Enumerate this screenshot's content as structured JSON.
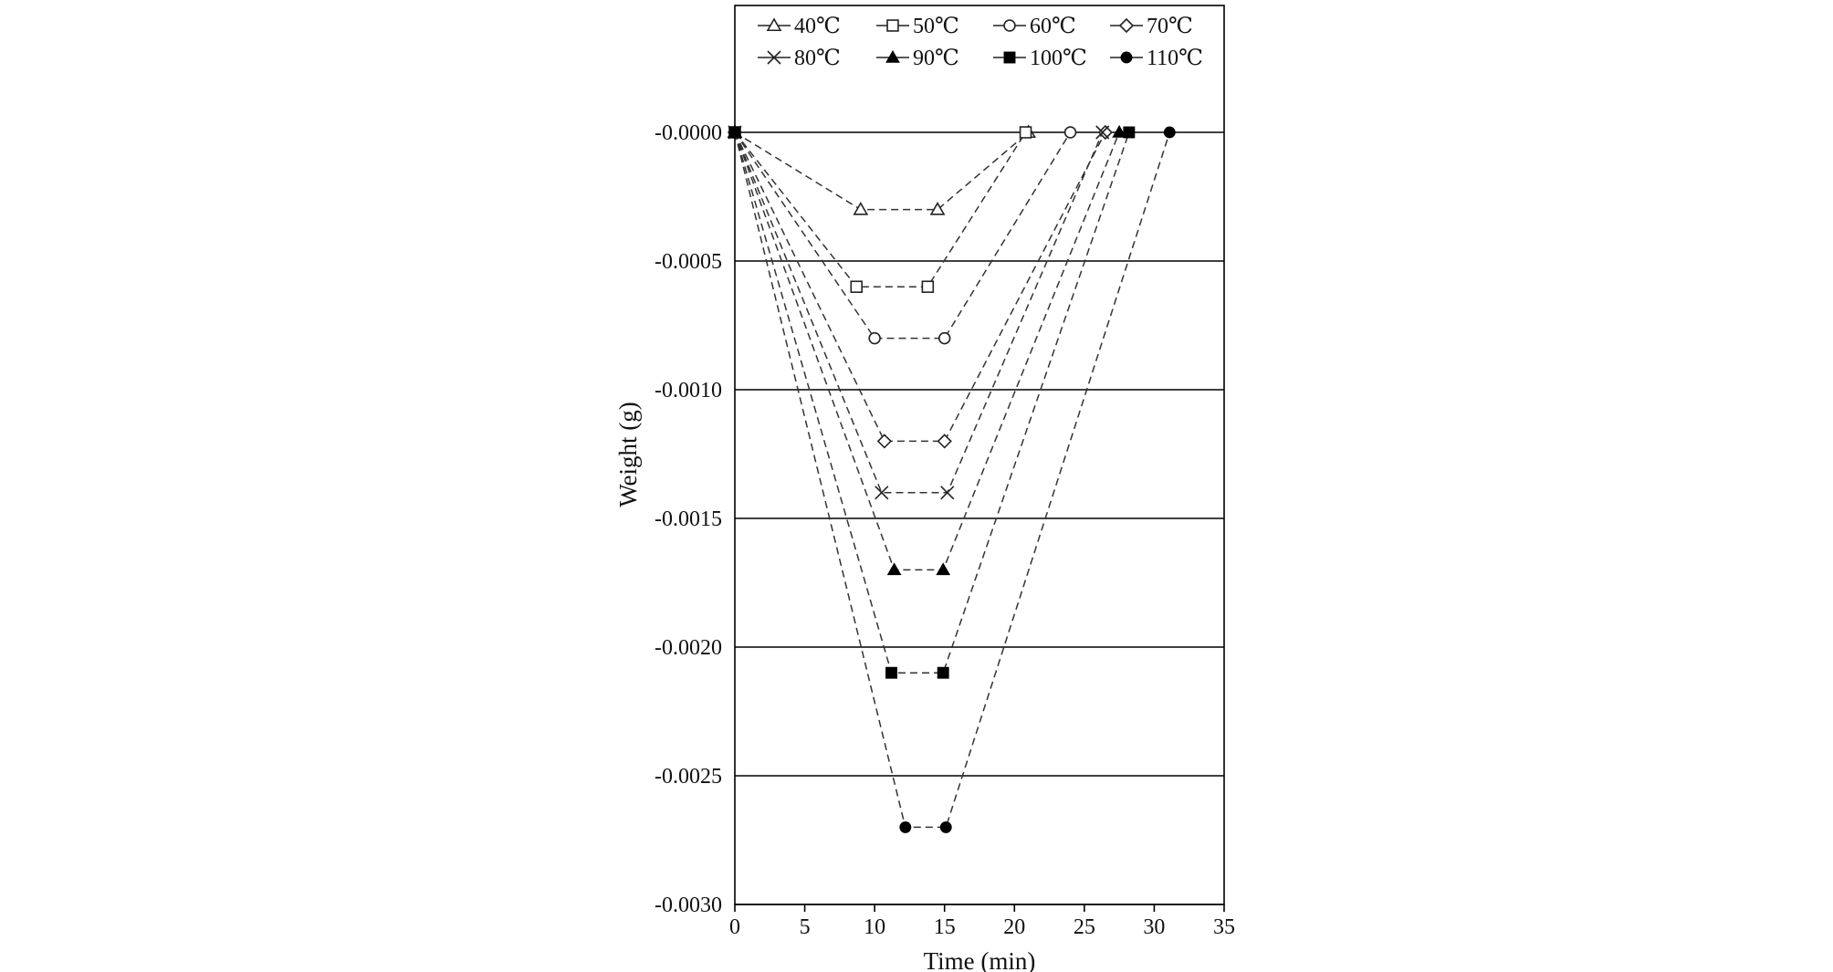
{
  "chart_data": {
    "type": "line",
    "xlabel": "Time (min)",
    "ylabel": "Weight (g)",
    "xlim": [
      0,
      35
    ],
    "ylim": [
      -0.003,
      0
    ],
    "x_ticks": [
      "0",
      "5",
      "10",
      "15",
      "20",
      "25",
      "30",
      "35"
    ],
    "y_ticks": [
      "-0.0000",
      "-0.0005",
      "-0.0010",
      "-0.0015",
      "-0.0020",
      "-0.0025",
      "-0.0030"
    ],
    "grid": "horizontal",
    "legend_position": "top",
    "series": [
      {
        "name": "40℃",
        "marker": "triangle-open",
        "points": [
          [
            0,
            0
          ],
          [
            9,
            -0.0003
          ],
          [
            14.5,
            -0.0003
          ],
          [
            21,
            0
          ]
        ]
      },
      {
        "name": "50℃",
        "marker": "square-open",
        "points": [
          [
            0,
            0
          ],
          [
            8.7,
            -0.0006
          ],
          [
            13.8,
            -0.0006
          ],
          [
            20.8,
            0
          ]
        ]
      },
      {
        "name": "60℃",
        "marker": "circle-open",
        "points": [
          [
            0,
            0
          ],
          [
            10,
            -0.0008
          ],
          [
            15,
            -0.0008
          ],
          [
            24,
            0
          ]
        ]
      },
      {
        "name": "70℃",
        "marker": "diamond-open",
        "points": [
          [
            0,
            0
          ],
          [
            10.7,
            -0.0012
          ],
          [
            15,
            -0.0012
          ],
          [
            26.5,
            0
          ]
        ]
      },
      {
        "name": "80℃",
        "marker": "x",
        "points": [
          [
            0,
            0
          ],
          [
            10.5,
            -0.0014
          ],
          [
            15.2,
            -0.0014
          ],
          [
            26.3,
            0
          ]
        ]
      },
      {
        "name": "90℃",
        "marker": "triangle-filled",
        "points": [
          [
            0,
            0
          ],
          [
            11.4,
            -0.0017
          ],
          [
            14.9,
            -0.0017
          ],
          [
            27.5,
            0
          ]
        ]
      },
      {
        "name": "100℃",
        "marker": "square-filled",
        "points": [
          [
            0,
            0
          ],
          [
            11.2,
            -0.0021
          ],
          [
            14.9,
            -0.0021
          ],
          [
            28.2,
            0
          ]
        ]
      },
      {
        "name": "110℃",
        "marker": "circle-filled",
        "points": [
          [
            0,
            0
          ],
          [
            12.2,
            -0.0027
          ],
          [
            15.1,
            -0.0027
          ],
          [
            31.1,
            0
          ]
        ]
      }
    ]
  }
}
